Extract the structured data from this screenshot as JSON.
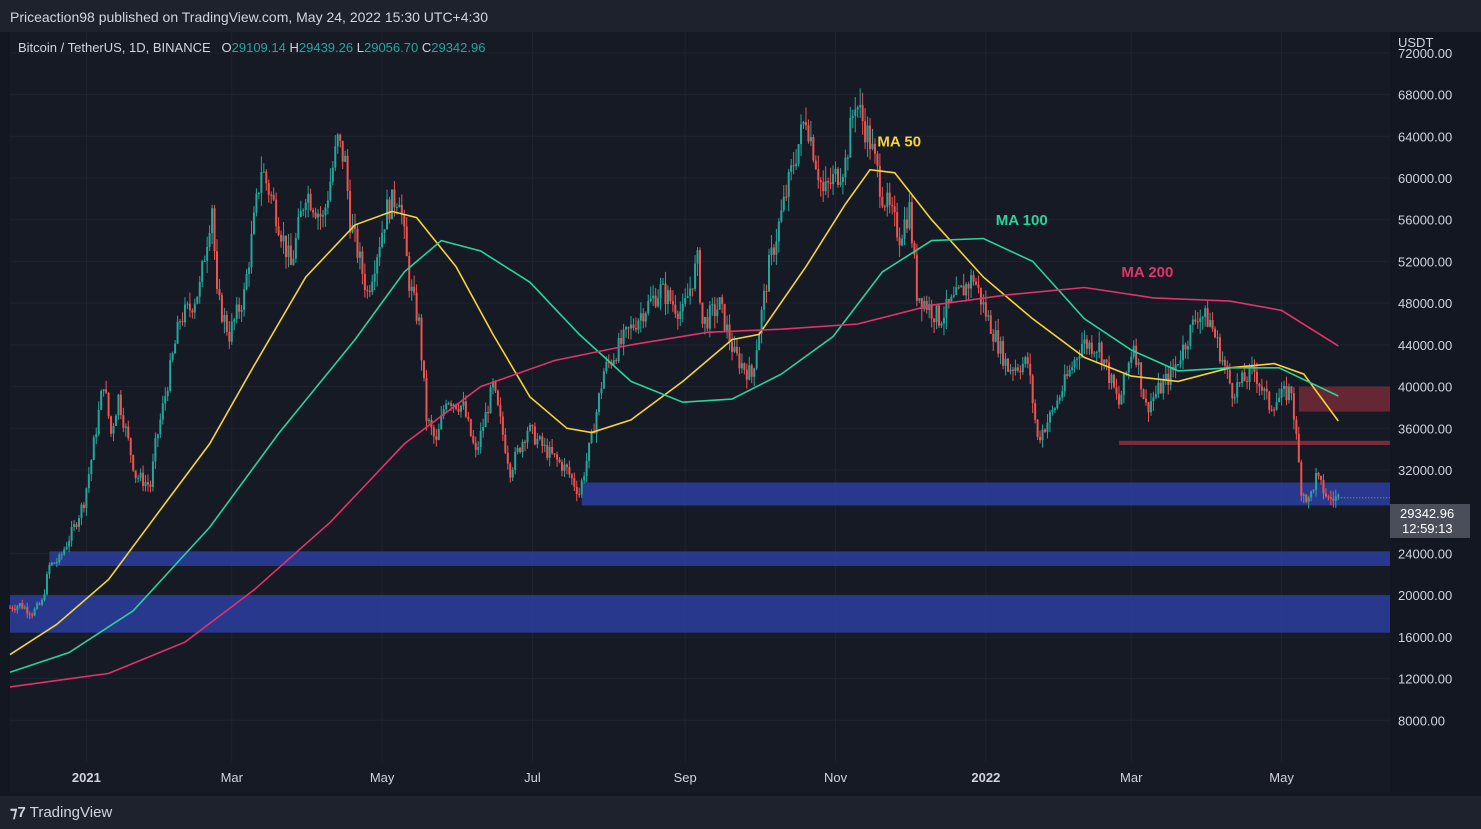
{
  "header": {
    "published": "Priceaction98 published on TradingView.com, May 24, 2022 15:30 UTC+4:30"
  },
  "symbol": {
    "name": "Bitcoin / TetherUS, 1D, BINANCE",
    "o_label": "O",
    "o": "29109.14",
    "h_label": "H",
    "h": "29439.26",
    "l_label": "L",
    "l": "29056.70",
    "c_label": "C",
    "c": "29342.96"
  },
  "price_axis": {
    "currency": "USDT",
    "current_price": "29342.96",
    "countdown": "12:59:13"
  },
  "footer": {
    "brand": "TradingView"
  },
  "colors": {
    "up": "#26a69a",
    "down": "#ef5350",
    "ma50": "#f5d33a",
    "ma100": "#2ad39a",
    "ma200": "#e3326b",
    "support_zone": "#2b3fa0",
    "resistance_zone": "#7a2b3a"
  },
  "chart_data": {
    "type": "line",
    "title": "Bitcoin / TetherUS, 1D, BINANCE",
    "xlabel": "",
    "ylabel": "USDT",
    "ylim": [
      4000,
      74000
    ],
    "y_ticks": [
      "72000.00",
      "68000.00",
      "64000.00",
      "60000.00",
      "56000.00",
      "52000.00",
      "48000.00",
      "44000.00",
      "40000.00",
      "36000.00",
      "32000.00",
      "24000.00",
      "20000.00",
      "16000.00",
      "12000.00",
      "8000.00"
    ],
    "x_ticks": [
      {
        "label": "2021",
        "date": "2021-01-01",
        "bold": true
      },
      {
        "label": "Mar",
        "date": "2021-03-01",
        "bold": false
      },
      {
        "label": "May",
        "date": "2021-05-01",
        "bold": false
      },
      {
        "label": "Jul",
        "date": "2021-07-01",
        "bold": false
      },
      {
        "label": "Sep",
        "date": "2021-09-01",
        "bold": false
      },
      {
        "label": "Nov",
        "date": "2021-11-01",
        "bold": false
      },
      {
        "label": "2022",
        "date": "2022-01-01",
        "bold": true
      },
      {
        "label": "Mar",
        "date": "2022-03-01",
        "bold": false
      },
      {
        "label": "May",
        "date": "2022-05-01",
        "bold": false
      }
    ],
    "x_range": [
      "2020-12-01",
      "2022-06-14"
    ],
    "price_path": [
      [
        "2020-12-01",
        18800
      ],
      [
        "2020-12-05",
        19100
      ],
      [
        "2020-12-10",
        18300
      ],
      [
        "2020-12-14",
        19300
      ],
      [
        "2020-12-17",
        22800
      ],
      [
        "2020-12-21",
        23400
      ],
      [
        "2020-12-27",
        26500
      ],
      [
        "2020-12-31",
        29000
      ],
      [
        "2021-01-03",
        33000
      ],
      [
        "2021-01-08",
        40500
      ],
      [
        "2021-01-11",
        35500
      ],
      [
        "2021-01-14",
        39000
      ],
      [
        "2021-01-21",
        31500
      ],
      [
        "2021-01-27",
        30500
      ],
      [
        "2021-01-29",
        34300
      ],
      [
        "2021-02-08",
        46500
      ],
      [
        "2021-02-12",
        47500
      ],
      [
        "2021-02-16",
        49500
      ],
      [
        "2021-02-21",
        57500
      ],
      [
        "2021-02-23",
        48500
      ],
      [
        "2021-02-28",
        45000
      ],
      [
        "2021-03-06",
        48800
      ],
      [
        "2021-03-13",
        61000
      ],
      [
        "2021-03-18",
        57500
      ],
      [
        "2021-03-25",
        51500
      ],
      [
        "2021-03-31",
        58800
      ],
      [
        "2021-04-07",
        56000
      ],
      [
        "2021-04-13",
        63500
      ],
      [
        "2021-04-16",
        61500
      ],
      [
        "2021-04-18",
        56000
      ],
      [
        "2021-04-25",
        49000
      ],
      [
        "2021-05-03",
        57000
      ],
      [
        "2021-05-08",
        58500
      ],
      [
        "2021-05-12",
        50000
      ],
      [
        "2021-05-16",
        46000
      ],
      [
        "2021-05-19",
        37000
      ],
      [
        "2021-05-23",
        34500
      ],
      [
        "2021-05-27",
        39000
      ],
      [
        "2021-06-03",
        38000
      ],
      [
        "2021-06-08",
        33500
      ],
      [
        "2021-06-15",
        40000
      ],
      [
        "2021-06-22",
        32000
      ],
      [
        "2021-06-29",
        36000
      ],
      [
        "2021-07-06",
        34000
      ],
      [
        "2021-07-15",
        32000
      ],
      [
        "2021-07-20",
        29800
      ],
      [
        "2021-07-25",
        35000
      ],
      [
        "2021-07-30",
        41500
      ],
      [
        "2021-08-07",
        44500
      ],
      [
        "2021-08-14",
        47000
      ],
      [
        "2021-08-22",
        49300
      ],
      [
        "2021-08-31",
        47000
      ],
      [
        "2021-09-06",
        52000
      ],
      [
        "2021-09-08",
        46000
      ],
      [
        "2021-09-15",
        47800
      ],
      [
        "2021-09-21",
        43000
      ],
      [
        "2021-09-28",
        41000
      ],
      [
        "2021-10-05",
        51500
      ],
      [
        "2021-10-15",
        61500
      ],
      [
        "2021-10-20",
        66000
      ],
      [
        "2021-10-27",
        58500
      ],
      [
        "2021-11-05",
        61500
      ],
      [
        "2021-11-09",
        67500
      ],
      [
        "2021-11-15",
        63500
      ],
      [
        "2021-11-20",
        58500
      ],
      [
        "2021-11-27",
        54500
      ],
      [
        "2021-12-01",
        57000
      ],
      [
        "2021-12-04",
        49000
      ],
      [
        "2021-12-13",
        46500
      ],
      [
        "2021-12-27",
        50500
      ],
      [
        "2022-01-01",
        47000
      ],
      [
        "2022-01-10",
        41800
      ],
      [
        "2022-01-18",
        42300
      ],
      [
        "2022-01-22",
        35000
      ],
      [
        "2022-01-28",
        37500
      ],
      [
        "2022-02-09",
        44200
      ],
      [
        "2022-02-16",
        43800
      ],
      [
        "2022-02-24",
        38300
      ],
      [
        "2022-03-02",
        44300
      ],
      [
        "2022-03-07",
        38000
      ],
      [
        "2022-03-18",
        41500
      ],
      [
        "2022-03-28",
        47000
      ],
      [
        "2022-04-02",
        46300
      ],
      [
        "2022-04-11",
        39600
      ],
      [
        "2022-04-20",
        41500
      ],
      [
        "2022-04-26",
        38200
      ],
      [
        "2022-05-05",
        39700
      ],
      [
        "2022-05-09",
        30200
      ],
      [
        "2022-05-12",
        29000
      ],
      [
        "2022-05-15",
        31300
      ],
      [
        "2022-05-20",
        29200
      ],
      [
        "2022-05-24",
        29342
      ]
    ],
    "series": [
      {
        "name": "MA 50",
        "key": "ma50",
        "values": [
          [
            "2020-12-01",
            14300
          ],
          [
            "2020-12-20",
            17200
          ],
          [
            "2021-01-10",
            21500
          ],
          [
            "2021-02-01",
            28500
          ],
          [
            "2021-02-20",
            34500
          ],
          [
            "2021-03-10",
            42000
          ],
          [
            "2021-03-31",
            50500
          ],
          [
            "2021-04-20",
            55500
          ],
          [
            "2021-05-05",
            56800
          ],
          [
            "2021-05-15",
            56200
          ],
          [
            "2021-05-31",
            51500
          ],
          [
            "2021-06-15",
            45000
          ],
          [
            "2021-06-30",
            39000
          ],
          [
            "2021-07-15",
            36000
          ],
          [
            "2021-07-25",
            35600
          ],
          [
            "2021-08-10",
            36800
          ],
          [
            "2021-08-31",
            40500
          ],
          [
            "2021-09-20",
            44500
          ],
          [
            "2021-10-01",
            45000
          ],
          [
            "2021-10-20",
            51500
          ],
          [
            "2021-11-05",
            57500
          ],
          [
            "2021-11-15",
            60800
          ],
          [
            "2021-11-25",
            60500
          ],
          [
            "2021-12-10",
            56000
          ],
          [
            "2021-12-31",
            50500
          ],
          [
            "2022-01-20",
            46500
          ],
          [
            "2022-02-10",
            42800
          ],
          [
            "2022-03-01",
            41000
          ],
          [
            "2022-03-20",
            40500
          ],
          [
            "2022-04-10",
            41800
          ],
          [
            "2022-04-28",
            42200
          ],
          [
            "2022-05-10",
            41200
          ],
          [
            "2022-05-24",
            36700
          ]
        ]
      },
      {
        "name": "MA 100",
        "key": "ma100",
        "values": [
          [
            "2020-12-01",
            12600
          ],
          [
            "2020-12-25",
            14500
          ],
          [
            "2021-01-20",
            18500
          ],
          [
            "2021-02-20",
            26500
          ],
          [
            "2021-03-20",
            35500
          ],
          [
            "2021-04-20",
            44500
          ],
          [
            "2021-05-10",
            51000
          ],
          [
            "2021-05-25",
            54000
          ],
          [
            "2021-06-10",
            53000
          ],
          [
            "2021-06-30",
            50000
          ],
          [
            "2021-07-20",
            45000
          ],
          [
            "2021-08-10",
            40500
          ],
          [
            "2021-08-31",
            38500
          ],
          [
            "2021-09-20",
            38800
          ],
          [
            "2021-10-10",
            41200
          ],
          [
            "2021-10-31",
            44800
          ],
          [
            "2021-11-20",
            51000
          ],
          [
            "2021-12-10",
            54000
          ],
          [
            "2021-12-31",
            54200
          ],
          [
            "2022-01-20",
            52000
          ],
          [
            "2022-02-10",
            46500
          ],
          [
            "2022-03-01",
            43500
          ],
          [
            "2022-03-20",
            41500
          ],
          [
            "2022-04-10",
            41800
          ],
          [
            "2022-04-30",
            41800
          ],
          [
            "2022-05-24",
            39100
          ]
        ]
      },
      {
        "name": "MA 200",
        "key": "ma200",
        "values": [
          [
            "2020-12-01",
            11200
          ],
          [
            "2021-01-10",
            12500
          ],
          [
            "2021-02-10",
            15500
          ],
          [
            "2021-03-10",
            20500
          ],
          [
            "2021-04-10",
            27000
          ],
          [
            "2021-05-10",
            34500
          ],
          [
            "2021-06-10",
            40000
          ],
          [
            "2021-07-10",
            42500
          ],
          [
            "2021-08-10",
            44000
          ],
          [
            "2021-09-10",
            45200
          ],
          [
            "2021-10-10",
            45500
          ],
          [
            "2021-11-10",
            46000
          ],
          [
            "2021-12-10",
            47800
          ],
          [
            "2022-01-10",
            48800
          ],
          [
            "2022-02-10",
            49500
          ],
          [
            "2022-03-10",
            48500
          ],
          [
            "2022-04-10",
            48200
          ],
          [
            "2022-05-01",
            47300
          ],
          [
            "2022-05-24",
            43900
          ]
        ]
      }
    ],
    "annotations": [
      {
        "text": "MA 50",
        "key": "ma50",
        "date": "2021-11-18",
        "y": 63000
      },
      {
        "text": "MA 100",
        "key": "ma100",
        "date": "2022-01-05",
        "y": 55500
      },
      {
        "text": "MA 200",
        "key": "ma200",
        "date": "2022-02-25",
        "y": 50500
      }
    ],
    "zones": [
      {
        "kind": "support",
        "from": "2021-07-21",
        "to_end": true,
        "ymin": 28600,
        "ymax": 30800
      },
      {
        "kind": "support",
        "from": "2020-12-17",
        "to_end": true,
        "ymin": 22800,
        "ymax": 24200
      },
      {
        "kind": "support",
        "from": "2020-12-01",
        "to_end": true,
        "ymin": 16400,
        "ymax": 20000
      },
      {
        "kind": "resistance",
        "from": "2022-05-08",
        "to_end": true,
        "ymin": 37600,
        "ymax": 40000
      },
      {
        "kind": "resistance_line",
        "from": "2022-02-24",
        "to_end": true,
        "ymin": 34400,
        "ymax": 34800
      }
    ]
  }
}
